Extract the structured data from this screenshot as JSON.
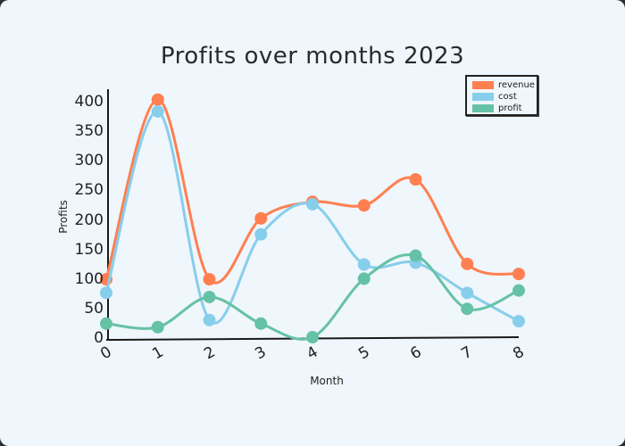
{
  "chart_data": {
    "type": "line",
    "title": "Profits over months 2023",
    "xlabel": "Month",
    "ylabel": "Profits",
    "x": [
      0,
      1,
      2,
      3,
      4,
      5,
      6,
      7,
      8
    ],
    "x_tick_labels": [
      "0",
      "1",
      "2",
      "3",
      "4",
      "5",
      "6",
      "7",
      "8"
    ],
    "y_tick_labels": [
      "0",
      "50",
      "100",
      "150",
      "200",
      "250",
      "300",
      "350",
      "400"
    ],
    "ylim": [
      0,
      420
    ],
    "xlim": [
      0,
      8
    ],
    "grid": false,
    "legend_position": "upper right",
    "style": "hand-drawn (xkcd-like), smoothed lines with markers",
    "series": [
      {
        "name": "revenue",
        "color": "#ff7f50",
        "values": [
          101,
          405,
          101,
          204,
          232,
          226,
          270,
          127,
          110
        ]
      },
      {
        "name": "cost",
        "color": "#87ceeb",
        "values": [
          78,
          385,
          32,
          177,
          228,
          126,
          129,
          78,
          30
        ]
      },
      {
        "name": "profit",
        "color": "#66c2a5",
        "values": [
          26,
          20,
          71,
          26,
          3,
          102,
          141,
          51,
          82
        ]
      }
    ]
  },
  "legend": {
    "items": [
      {
        "label": "revenue",
        "color": "#ff7f50"
      },
      {
        "label": "cost",
        "color": "#87ceeb"
      },
      {
        "label": "profit",
        "color": "#66c2a5"
      }
    ]
  },
  "colors": {
    "background": "#eff6fc",
    "axis": "#1a1a1a",
    "text": "#222222"
  }
}
